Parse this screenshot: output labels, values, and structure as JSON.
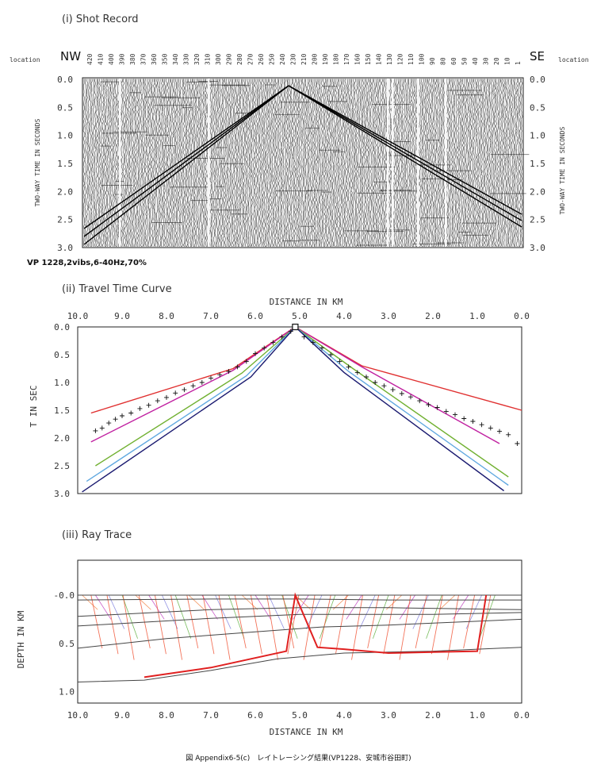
{
  "shot_record": {
    "title": "(i) Shot Record",
    "left_dir": "NW",
    "right_dir": "SE",
    "location_label": "location",
    "ylabel": "TWO-WAY TIME IN SECONDS",
    "vp_note": "VP 1228,2vibs,6-40Hz,70%",
    "location_ticks": [
      "420",
      "410",
      "400",
      "390",
      "380",
      "370",
      "360",
      "350",
      "340",
      "330",
      "320",
      "310",
      "300",
      "290",
      "280",
      "270",
      "260",
      "250",
      "240",
      "230",
      "210",
      "200",
      "190",
      "180",
      "170",
      "160",
      "150",
      "140",
      "130",
      "120",
      "110",
      "100",
      "90",
      "80",
      "60",
      "50",
      "40",
      "30",
      "20",
      "10",
      "1"
    ],
    "time_ticks": [
      "0.0",
      "0.5",
      "1.0",
      "1.5",
      "2.0",
      "2.5",
      "3.0"
    ]
  },
  "chart_data": [
    {
      "type": "line",
      "title": "(ii) Travel Time Curve",
      "xlabel": "DISTANCE IN KM",
      "ylabel": "T IN SEC",
      "xlim": [
        10.0,
        0.0
      ],
      "ylim": [
        0.0,
        3.0
      ],
      "x_ticks": [
        "10.0",
        "9.0",
        "8.0",
        "7.0",
        "6.0",
        "5.0",
        "4.0",
        "3.0",
        "2.0",
        "1.0",
        "0.0"
      ],
      "y_ticks": [
        "0.0",
        "0.5",
        "1.0",
        "1.5",
        "2.0",
        "2.5",
        "3.0"
      ],
      "source_x": 5.1,
      "series": [
        {
          "color": "#e03030",
          "x": [
            9.7,
            6.5,
            5.1,
            3.6,
            0.0
          ],
          "y": [
            1.55,
            0.75,
            0.0,
            0.7,
            1.5
          ]
        },
        {
          "color": "#c020a0",
          "x": [
            9.7,
            6.5,
            5.1,
            3.6,
            0.5
          ],
          "y": [
            2.07,
            0.78,
            0.0,
            0.72,
            2.1
          ]
        },
        {
          "color": "#70b030",
          "x": [
            9.6,
            6.3,
            5.1,
            3.8,
            0.3
          ],
          "y": [
            2.5,
            0.83,
            0.0,
            0.75,
            2.7
          ]
        },
        {
          "color": "#60a8e0",
          "x": [
            9.8,
            6.2,
            5.1,
            3.9,
            0.3
          ],
          "y": [
            2.78,
            0.88,
            0.0,
            0.8,
            2.85
          ]
        },
        {
          "color": "#1a1a70",
          "x": [
            9.9,
            6.1,
            5.1,
            4.0,
            0.4
          ],
          "y": [
            2.97,
            0.9,
            0.0,
            0.82,
            2.95
          ]
        }
      ],
      "picks": {
        "x": [
          9.6,
          9.45,
          9.3,
          9.15,
          9.0,
          8.8,
          8.6,
          8.4,
          8.2,
          8.0,
          7.8,
          7.6,
          7.4,
          7.2,
          7.0,
          6.8,
          6.6,
          6.4,
          6.2,
          6.0,
          5.8,
          5.6,
          5.4,
          5.2,
          4.9,
          4.7,
          4.5,
          4.3,
          4.1,
          3.9,
          3.7,
          3.5,
          3.3,
          3.1,
          2.9,
          2.7,
          2.5,
          2.3,
          2.1,
          1.9,
          1.7,
          1.5,
          1.3,
          1.1,
          0.9,
          0.7,
          0.5,
          0.3,
          0.1
        ],
        "y": [
          1.87,
          1.82,
          1.73,
          1.66,
          1.6,
          1.55,
          1.47,
          1.41,
          1.33,
          1.27,
          1.19,
          1.13,
          1.06,
          1.0,
          0.92,
          0.86,
          0.8,
          0.72,
          0.62,
          0.48,
          0.38,
          0.28,
          0.18,
          0.08,
          0.18,
          0.28,
          0.38,
          0.5,
          0.62,
          0.72,
          0.82,
          0.9,
          1.0,
          1.06,
          1.13,
          1.2,
          1.26,
          1.33,
          1.4,
          1.45,
          1.52,
          1.58,
          1.65,
          1.7,
          1.76,
          1.82,
          1.88,
          1.94,
          2.1
        ]
      }
    },
    {
      "type": "line",
      "title": "(iii) Ray Trace",
      "xlabel": "DISTANCE IN KM",
      "ylabel": "DEPTH IN KM",
      "xlim": [
        10.0,
        0.0
      ],
      "ylim": [
        -0.1,
        1.2
      ],
      "x_ticks": [
        "10.0",
        "9.0",
        "8.0",
        "7.0",
        "6.0",
        "5.0",
        "4.0",
        "3.0",
        "2.0",
        "1.0",
        "0.0"
      ],
      "y_ticks": [
        "-0.0",
        "0.5",
        "1.0"
      ],
      "source_x": 5.1,
      "series": [
        {
          "color": "#444444",
          "x": [
            10.0,
            0.0
          ],
          "y": [
            0.0,
            0.0
          ]
        },
        {
          "color": "#444444",
          "x": [
            10.0,
            7.0,
            5.0,
            3.0,
            0.0
          ],
          "y": [
            0.05,
            0.04,
            0.04,
            0.05,
            0.05
          ]
        },
        {
          "color": "#444444",
          "x": [
            10.0,
            7.0,
            5.0,
            3.0,
            0.0
          ],
          "y": [
            0.22,
            0.15,
            0.13,
            0.13,
            0.15
          ]
        },
        {
          "color": "#444444",
          "x": [
            10.0,
            7.0,
            5.0,
            2.0,
            0.0
          ],
          "y": [
            0.32,
            0.24,
            0.2,
            0.2,
            0.18
          ]
        },
        {
          "color": "#444444",
          "x": [
            10.0,
            8.0,
            6.0,
            4.5,
            3.0,
            1.0,
            0.0
          ],
          "y": [
            0.55,
            0.45,
            0.38,
            0.33,
            0.31,
            0.27,
            0.25
          ]
        },
        {
          "color": "#444444",
          "x": [
            10.0,
            8.5,
            7.0,
            5.5,
            4.0,
            2.0,
            0.0
          ],
          "y": [
            0.9,
            0.88,
            0.78,
            0.66,
            0.6,
            0.58,
            0.54
          ]
        },
        {
          "color": "#e02020",
          "x": [
            8.5,
            7.0,
            5.3,
            5.1,
            4.6,
            4.0,
            3.0,
            2.0,
            1.0,
            0.8
          ],
          "y": [
            0.85,
            0.75,
            0.58,
            0.0,
            0.54,
            0.56,
            0.6,
            0.59,
            0.58,
            0.0
          ]
        }
      ]
    }
  ],
  "caption": "図 Appendix6-5(c)　レイトレーシング結果(VP1228、安城市谷田町)"
}
